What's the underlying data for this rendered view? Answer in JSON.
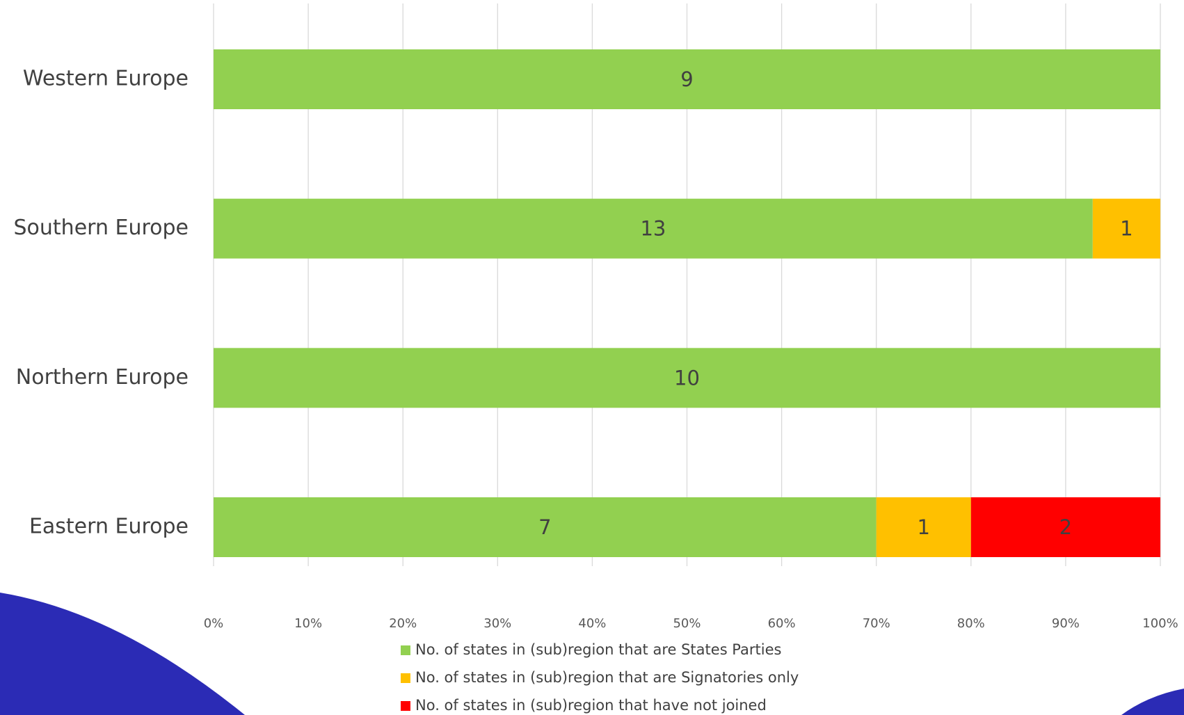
{
  "chart_data": {
    "type": "stacked_bar_100_horizontal",
    "categories": [
      "Western Europe",
      "Southern Europe",
      "Northern Europe",
      "Eastern Europe"
    ],
    "series": [
      {
        "name": "No. of states in (sub)region that are States Parties",
        "color": "#92d050",
        "values": [
          9,
          13,
          10,
          7
        ]
      },
      {
        "name": "No. of states in (sub)region that are Signatories only",
        "color": "#ffc000",
        "values": [
          0,
          1,
          0,
          1
        ]
      },
      {
        "name": "No. of states in (sub)region that have not joined",
        "color": "#ff0000",
        "values": [
          0,
          0,
          0,
          2
        ]
      }
    ],
    "xlim": [
      0,
      100
    ],
    "xticks": [
      {
        "value": 0,
        "label": "0%"
      },
      {
        "value": 10,
        "label": "10%"
      },
      {
        "value": 20,
        "label": "20%"
      },
      {
        "value": 30,
        "label": "30%"
      },
      {
        "value": 40,
        "label": "40%"
      },
      {
        "value": 50,
        "label": "50%"
      },
      {
        "value": 60,
        "label": "60%"
      },
      {
        "value": 70,
        "label": "70%"
      },
      {
        "value": 80,
        "label": "80%"
      },
      {
        "value": 90,
        "label": "90%"
      },
      {
        "value": 100,
        "label": "100%"
      }
    ],
    "grid": true,
    "legend": "bottom"
  }
}
